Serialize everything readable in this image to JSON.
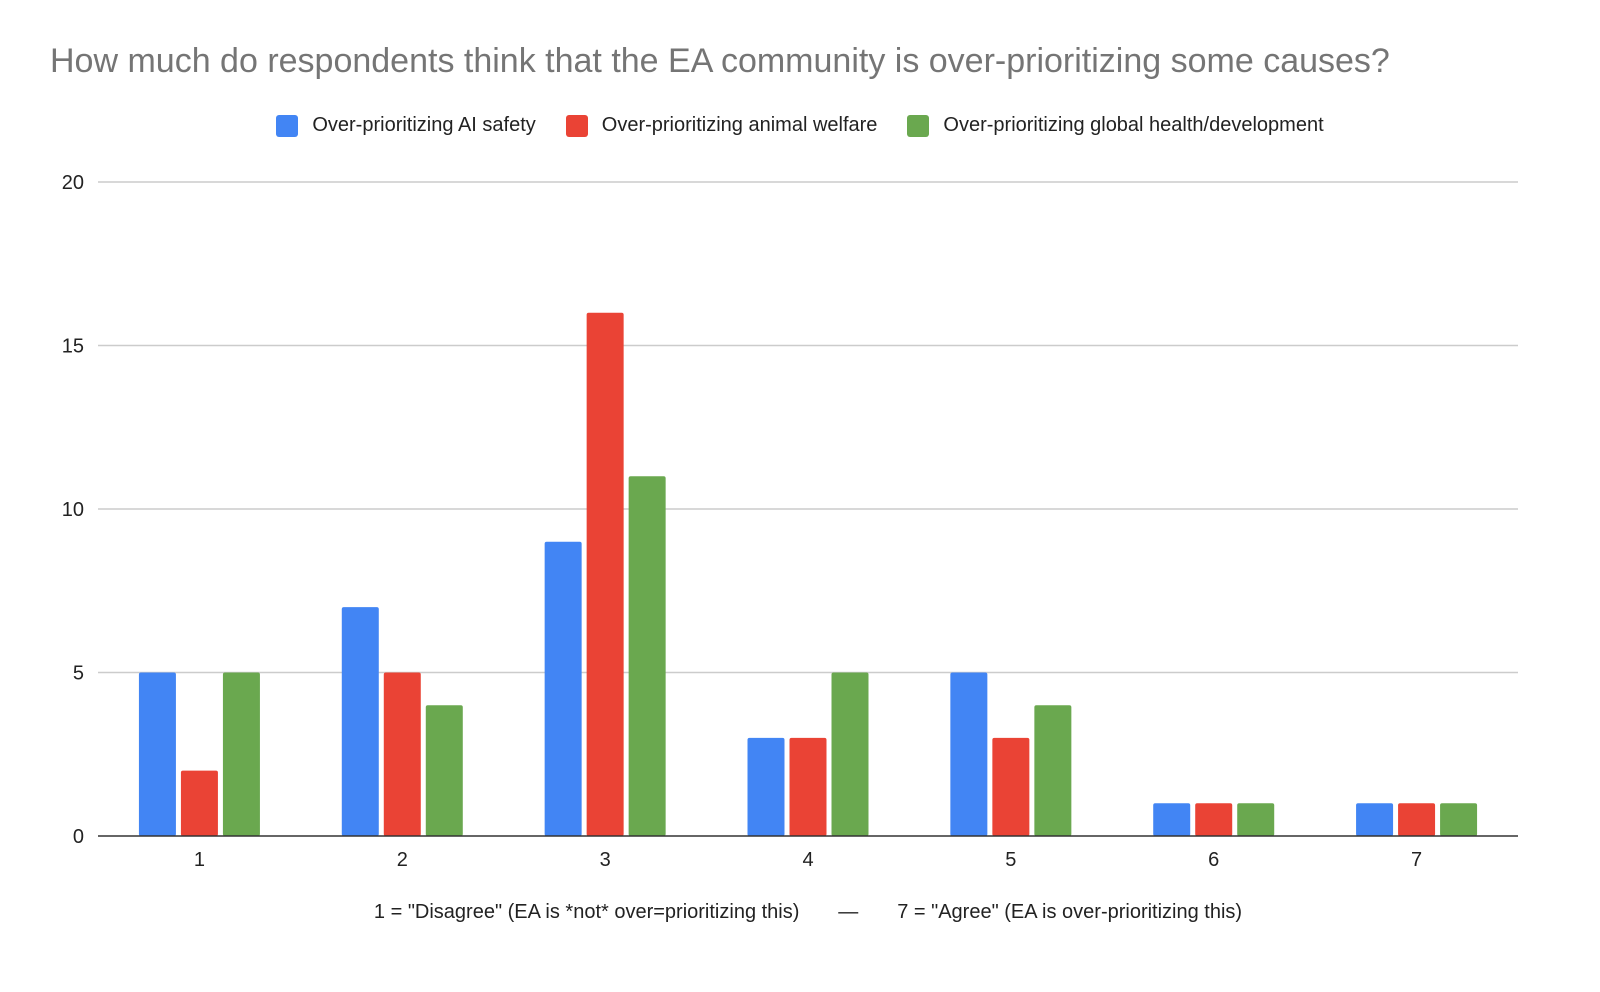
{
  "chart_data": {
    "type": "bar",
    "title": "How much do respondents think that the EA community is over-prioritizing some causes?",
    "categories": [
      "1",
      "2",
      "3",
      "4",
      "5",
      "6",
      "7"
    ],
    "series": [
      {
        "name": "Over-prioritizing AI safety",
        "color": "#4285f4",
        "values": [
          5,
          7,
          9,
          3,
          5,
          1,
          1
        ]
      },
      {
        "name": "Over-prioritizing animal welfare",
        "color": "#ea4335",
        "values": [
          2,
          5,
          16,
          3,
          3,
          1,
          1
        ]
      },
      {
        "name": "Over-prioritizing global health/development",
        "color": "#6aa84f",
        "values": [
          5,
          4,
          11,
          5,
          4,
          1,
          1
        ]
      }
    ],
    "xlabel": "1 = \"Disagree\" (EA is *not* over=prioritizing this)       —       7 = \"Agree\" (EA is over-prioritizing this)",
    "ylabel": "",
    "ylim": [
      0,
      20
    ],
    "yticks": [
      0,
      5,
      10,
      15,
      20
    ],
    "grid": true,
    "legend": "top-center"
  }
}
